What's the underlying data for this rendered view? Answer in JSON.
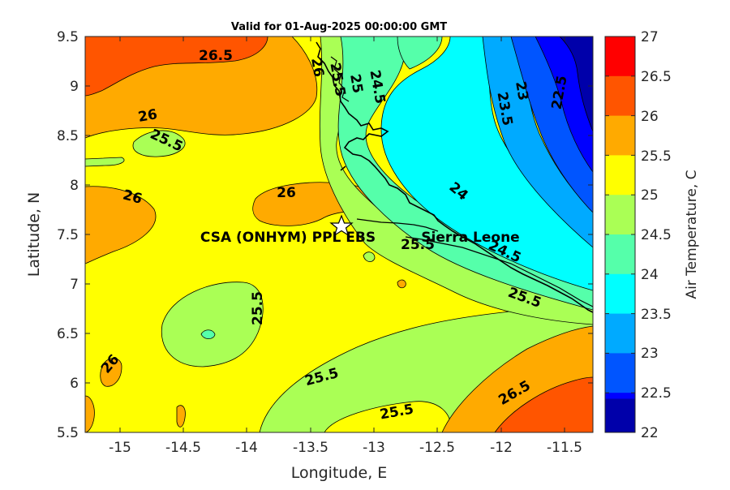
{
  "title": "Valid for 01-Aug-2025 00:00:00 GMT",
  "xlabel": "Longitude, E",
  "ylabel": "Latitude, N",
  "colorbar_label": "Air Temperature, C",
  "xticks": [
    "-15",
    "-14.5",
    "-14",
    "-13.5",
    "-13",
    "-12.5",
    "-12",
    "-11.5"
  ],
  "yticks": [
    "9.5",
    "9",
    "8.5",
    "8",
    "7.5",
    "7",
    "6.5",
    "6",
    "5.5"
  ],
  "colorbar": {
    "ticks": [
      "27",
      "26.5",
      "26",
      "25.5",
      "25",
      "24.5",
      "24",
      "23.5",
      "23",
      "22.5",
      "22"
    ],
    "levels": [
      {
        "range": "26.5-27",
        "color": "#ff0000"
      },
      {
        "range": "26-26.5",
        "color": "#ff5500"
      },
      {
        "range": "25.5-26",
        "color": "#ffaa00"
      },
      {
        "range": "25-25.5",
        "color": "#ffff00"
      },
      {
        "range": "24.5-25",
        "color": "#aaff55"
      },
      {
        "range": "24-24.5",
        "color": "#55ffaa"
      },
      {
        "range": "23.5-24",
        "color": "#00ffff"
      },
      {
        "range": "23-23.5",
        "color": "#00aaff"
      },
      {
        "range": "22.5-23",
        "color": "#0055ff"
      },
      {
        "range": "22-22.5",
        "color": "#0000ff"
      },
      {
        "range": "<22",
        "color": "#0000aa"
      }
    ]
  },
  "marker": {
    "name": "CSA (ONHYM) PPL EBS",
    "symbol": "star"
  },
  "country_label": "Sierra Leone",
  "contour_labels": [
    "26.5",
    "26",
    "25.5",
    "26",
    "26",
    "25.5",
    "25.5",
    "25.5",
    "26",
    "26.5",
    "25.5",
    "25.5",
    "24",
    "24.5",
    "24.5",
    "23.5",
    "23",
    "22.5",
    "26",
    "25.5",
    "25"
  ],
  "chart_data": {
    "type": "heatmap",
    "title": "Valid for 01-Aug-2025 00:00:00 GMT",
    "xlabel": "Longitude, E",
    "ylabel": "Latitude, N",
    "xlim": [
      -15.25,
      -11.25
    ],
    "ylim": [
      5.5,
      9.5
    ],
    "clim": [
      22,
      27
    ],
    "colorbar_label": "Air Temperature, C",
    "marker_location": {
      "lon": -13.22,
      "lat": 7.58
    }
  }
}
